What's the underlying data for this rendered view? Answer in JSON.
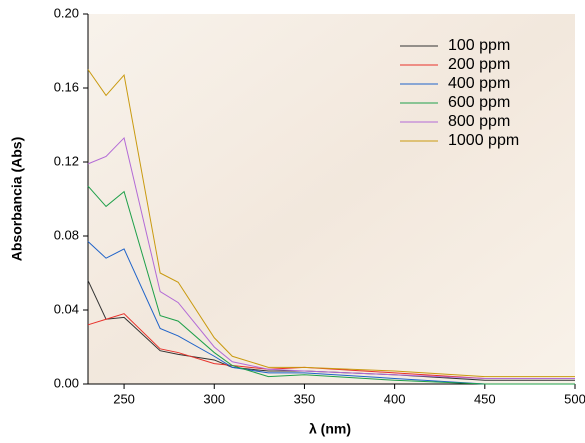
{
  "chart_data": {
    "type": "line",
    "xlabel": "λ (nm)",
    "ylabel": "Absorbancia (Abs)",
    "x": [
      230,
      240,
      250,
      270,
      280,
      300,
      310,
      330,
      350,
      400,
      450,
      500
    ],
    "xlim": [
      230,
      500
    ],
    "xticks": [
      250,
      300,
      350,
      400,
      450,
      500
    ],
    "ylim": [
      0,
      0.2
    ],
    "yticks": [
      {
        "value": 0,
        "label": "0.00"
      },
      0.04,
      0.08,
      0.12,
      0.16,
      {
        "value": 0.2,
        "label": "0.20"
      }
    ],
    "legend": "upper right",
    "series": [
      {
        "name": "100 ppm",
        "color": "#333333",
        "values": [
          0.056,
          0.035,
          0.036,
          0.018,
          0.016,
          0.013,
          0.009,
          0.007,
          0.007,
          0.005,
          0.002,
          0.002
        ]
      },
      {
        "name": "200 ppm",
        "color": "#e8312a",
        "values": [
          0.032,
          0.035,
          0.038,
          0.019,
          0.017,
          0.011,
          0.01,
          0.008,
          0.009,
          0.006,
          0.003,
          0.003
        ]
      },
      {
        "name": "400 ppm",
        "color": "#1f63c9",
        "values": [
          0.077,
          0.068,
          0.073,
          0.03,
          0.026,
          0.015,
          0.009,
          0.006,
          0.006,
          0.003,
          0.0,
          0.0
        ]
      },
      {
        "name": "600 ppm",
        "color": "#1fa04a",
        "values": [
          0.107,
          0.096,
          0.104,
          0.037,
          0.034,
          0.017,
          0.01,
          0.004,
          0.005,
          0.002,
          0.0,
          0.0
        ]
      },
      {
        "name": "800 ppm",
        "color": "#b36ad6",
        "values": [
          0.119,
          0.123,
          0.133,
          0.05,
          0.044,
          0.02,
          0.012,
          0.008,
          0.007,
          0.005,
          0.003,
          0.003
        ]
      },
      {
        "name": "1000 ppm",
        "color": "#c99a10",
        "values": [
          0.17,
          0.156,
          0.167,
          0.06,
          0.055,
          0.025,
          0.015,
          0.009,
          0.009,
          0.007,
          0.004,
          0.004
        ]
      }
    ]
  }
}
